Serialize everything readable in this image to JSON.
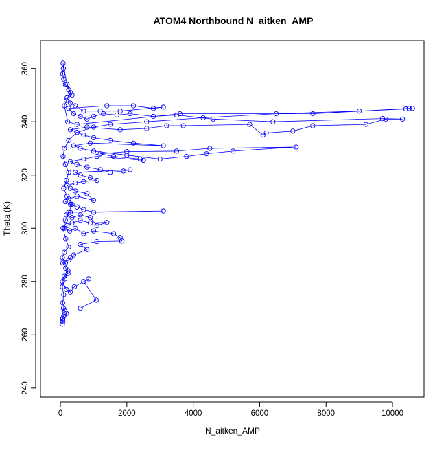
{
  "chart_data": {
    "type": "scatter",
    "title": "ATOM4 Northbound N_aitken_AMP",
    "xlabel": "N_aitken_AMP",
    "ylabel": "Theta (K)",
    "xlim": [
      -600,
      10950
    ],
    "ylim": [
      236.6,
      370.5
    ],
    "x_ticks": [
      0,
      2000,
      4000,
      6000,
      8000,
      10000
    ],
    "y_ticks": [
      240,
      260,
      280,
      300,
      320,
      340,
      360
    ],
    "grid": false,
    "legend": "none",
    "marker": "open-circle",
    "connected": true,
    "series_color": "#0000ff",
    "series": [
      {
        "points": [
          [
            60,
            264
          ],
          [
            75,
            265
          ],
          [
            60,
            266
          ],
          [
            100,
            267
          ],
          [
            180,
            268
          ],
          [
            120,
            267.5
          ],
          [
            90,
            270
          ],
          [
            600,
            270
          ],
          [
            1080,
            273
          ],
          [
            700,
            280
          ],
          [
            850,
            281
          ],
          [
            420,
            278
          ],
          [
            300,
            276
          ],
          [
            180,
            277
          ],
          [
            60,
            280
          ],
          [
            120,
            282
          ],
          [
            230,
            283
          ],
          [
            160,
            285
          ],
          [
            70,
            287
          ],
          [
            250,
            288
          ],
          [
            300,
            289
          ],
          [
            400,
            290
          ],
          [
            800,
            292
          ],
          [
            600,
            294
          ],
          [
            1100,
            295
          ],
          [
            1850,
            295.2
          ],
          [
            1800,
            296.5
          ],
          [
            1600,
            298
          ],
          [
            1000,
            299
          ],
          [
            700,
            298
          ],
          [
            450,
            300
          ],
          [
            280,
            299
          ],
          [
            120,
            300
          ],
          [
            200,
            301
          ],
          [
            350,
            302
          ],
          [
            600,
            303
          ],
          [
            900,
            302
          ],
          [
            1400,
            302.2
          ],
          [
            1100,
            301
          ],
          [
            900,
            304
          ],
          [
            600,
            305
          ],
          [
            350,
            304
          ],
          [
            180,
            305
          ],
          [
            300,
            306
          ],
          [
            3100,
            306.5
          ],
          [
            1000,
            306
          ],
          [
            700,
            307
          ],
          [
            500,
            308
          ],
          [
            300,
            309
          ],
          [
            150,
            310
          ],
          [
            250,
            311
          ],
          [
            500,
            312
          ],
          [
            1000,
            310.5
          ],
          [
            800,
            313
          ],
          [
            450,
            314
          ],
          [
            300,
            315
          ],
          [
            200,
            316
          ],
          [
            450,
            317
          ],
          [
            700,
            317.5
          ],
          [
            1100,
            318
          ],
          [
            900,
            319
          ],
          [
            600,
            320
          ],
          [
            450,
            321
          ],
          [
            2100,
            322
          ],
          [
            1900,
            321.5
          ],
          [
            1500,
            321
          ],
          [
            1200,
            322
          ],
          [
            800,
            323
          ],
          [
            500,
            324
          ],
          [
            300,
            325
          ],
          [
            700,
            326
          ],
          [
            1100,
            327
          ],
          [
            2500,
            325.5
          ],
          [
            2400,
            326
          ],
          [
            1600,
            327
          ],
          [
            1200,
            328
          ],
          [
            2000,
            328.8
          ],
          [
            3500,
            329
          ],
          [
            4500,
            330
          ],
          [
            7100,
            330.5
          ],
          [
            5200,
            329
          ],
          [
            4400,
            328
          ],
          [
            3800,
            327
          ],
          [
            3000,
            326
          ],
          [
            2000,
            327.5
          ],
          [
            1000,
            329
          ],
          [
            600,
            330
          ],
          [
            400,
            331
          ],
          [
            900,
            332
          ],
          [
            3100,
            331
          ],
          [
            2200,
            332
          ],
          [
            1500,
            333
          ],
          [
            1000,
            334
          ],
          [
            700,
            335
          ],
          [
            500,
            336
          ],
          [
            300,
            337
          ],
          [
            800,
            338
          ],
          [
            1800,
            337
          ],
          [
            2600,
            337.5
          ],
          [
            3200,
            338.5
          ],
          [
            3700,
            338.5
          ],
          [
            5700,
            339
          ],
          [
            6100,
            335
          ],
          [
            6200,
            335.8
          ],
          [
            7000,
            336.5
          ],
          [
            7600,
            338.5
          ],
          [
            9200,
            339
          ],
          [
            9800,
            341
          ],
          [
            10300,
            341
          ],
          [
            9700,
            341.2
          ],
          [
            6400,
            340
          ],
          [
            4600,
            341
          ],
          [
            3500,
            342.5
          ],
          [
            2800,
            342
          ],
          [
            2100,
            343
          ],
          [
            1700,
            342.5
          ],
          [
            1300,
            343
          ],
          [
            1000,
            342
          ],
          [
            800,
            341
          ],
          [
            600,
            342
          ],
          [
            400,
            343
          ],
          [
            250,
            345
          ],
          [
            1400,
            346
          ],
          [
            2200,
            346
          ],
          [
            2800,
            345
          ],
          [
            3100,
            345.5
          ],
          [
            1800,
            344
          ],
          [
            1200,
            344
          ],
          [
            700,
            344
          ],
          [
            450,
            346
          ],
          [
            300,
            347
          ],
          [
            200,
            349
          ],
          [
            350,
            350
          ],
          [
            250,
            352
          ],
          [
            150,
            354
          ],
          [
            100,
            356
          ],
          [
            70,
            358
          ],
          [
            90,
            360
          ],
          [
            80,
            362
          ],
          [
            200,
            354
          ],
          [
            300,
            351
          ],
          [
            180,
            348
          ],
          [
            120,
            346
          ],
          [
            220,
            340
          ],
          [
            500,
            339
          ],
          [
            3600,
            343
          ],
          [
            7600,
            343
          ],
          [
            10500,
            345
          ],
          [
            10600,
            345
          ],
          [
            10400,
            344.8
          ],
          [
            9000,
            344
          ],
          [
            6500,
            343
          ],
          [
            4300,
            341.5
          ],
          [
            2600,
            340
          ],
          [
            1500,
            339
          ],
          [
            1000,
            338
          ],
          [
            500,
            336
          ],
          [
            250,
            333
          ],
          [
            120,
            330
          ],
          [
            80,
            327
          ],
          [
            150,
            324
          ],
          [
            250,
            321
          ],
          [
            180,
            318
          ],
          [
            100,
            315
          ],
          [
            200,
            312
          ],
          [
            350,
            309
          ],
          [
            250,
            306
          ],
          [
            150,
            303
          ],
          [
            80,
            300
          ],
          [
            160,
            296
          ],
          [
            250,
            293
          ],
          [
            120,
            291
          ],
          [
            60,
            289
          ],
          [
            150,
            287
          ],
          [
            230,
            284
          ],
          [
            130,
            281
          ],
          [
            60,
            278
          ],
          [
            100,
            275
          ],
          [
            70,
            272
          ],
          [
            130,
            269
          ],
          [
            75,
            266
          ]
        ]
      }
    ]
  }
}
